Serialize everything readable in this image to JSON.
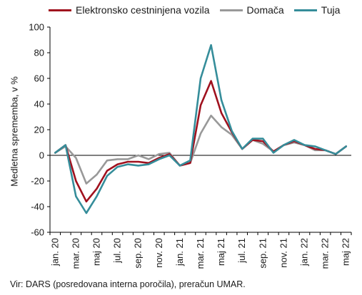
{
  "chart_data": {
    "type": "line",
    "ylabel": "Medletna sprememba, v %",
    "ylim": [
      -60,
      100
    ],
    "yticks": [
      -60,
      -40,
      -20,
      0,
      20,
      40,
      60,
      80,
      100
    ],
    "grid": false,
    "legend_position": "top",
    "source": "Vir: DARS (posredovana interna poročila), preračun UMAR.",
    "x": [
      "jan. 20",
      "feb. 20",
      "mar. 20",
      "apr. 20",
      "maj 20",
      "jun. 20",
      "jul. 20",
      "avg. 20",
      "sep. 20",
      "okt. 20",
      "nov. 20",
      "dec. 20",
      "jan. 21",
      "feb. 21",
      "mar. 21",
      "apr. 21",
      "maj 21",
      "jun. 21",
      "jul. 21",
      "avg. 21",
      "sep. 21",
      "okt. 21",
      "nov. 21",
      "dec. 21",
      "jan. 22",
      "feb. 22",
      "mar. 22",
      "apr. 22",
      "maj 22"
    ],
    "x_tick_labels": [
      "jan. 20",
      "mar. 20",
      "maj 20",
      "jul. 20",
      "sep. 20",
      "nov. 20",
      "jan. 21",
      "mar. 21",
      "maj 21",
      "jul. 21",
      "sep. 21",
      "nov. 21",
      "jan. 22",
      "mar. 22",
      "maj 22"
    ],
    "series": [
      {
        "name": "Elektronsko cestninjena vozila",
        "color": "#a0111e",
        "values": [
          2,
          8,
          -20,
          -36,
          -26,
          -12,
          -7,
          -5,
          -5,
          -6,
          -2,
          1,
          -8,
          -6,
          39,
          58,
          33,
          18,
          5,
          12,
          11,
          3,
          8,
          11,
          8,
          5,
          4,
          1,
          7
        ]
      },
      {
        "name": "Domača",
        "color": "#999999",
        "values": [
          2,
          7,
          -2,
          -22,
          -15,
          -4,
          -3,
          -3,
          0,
          -3,
          1,
          2,
          -8,
          -6,
          17,
          31,
          22,
          16,
          5,
          12,
          9,
          3,
          8,
          10,
          8,
          4,
          4,
          1,
          7
        ]
      },
      {
        "name": "Tuja",
        "color": "#358d9a",
        "values": [
          2,
          8,
          -32,
          -45,
          -32,
          -16,
          -9,
          -7,
          -8,
          -7,
          -3,
          0,
          -8,
          -4,
          60,
          86,
          43,
          19,
          5,
          13,
          13,
          2,
          8,
          12,
          8,
          7,
          4,
          1,
          7
        ]
      }
    ]
  }
}
